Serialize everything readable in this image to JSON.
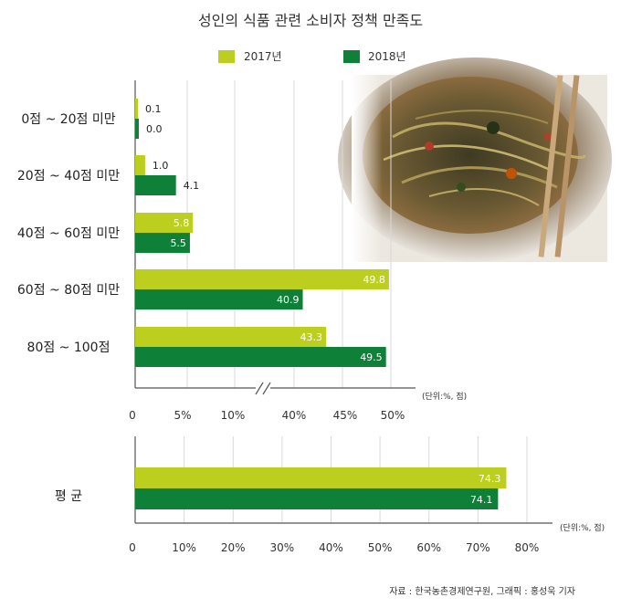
{
  "chart_data": [
    {
      "type": "bar",
      "orientation": "horizontal",
      "title": "성인의 식품 관련 소비자 정책 만족도",
      "unit_note": "(단위:%, 점)",
      "categories": [
        "0점 ~ 20점 미만",
        "20점 ~ 40점 미만",
        "40점 ~ 60점 미만",
        "60점 ~ 80점 미만",
        "80점 ~ 100점"
      ],
      "series": [
        {
          "name": "2017년",
          "values": [
            0.1,
            1.0,
            5.8,
            49.8,
            43.3
          ],
          "labels": [
            "0.1",
            "1.0",
            "5.8",
            "49.8",
            "43.3"
          ]
        },
        {
          "name": "2018년",
          "values": [
            0.0,
            4.1,
            5.5,
            40.9,
            49.5
          ],
          "labels": [
            "0.0",
            "4.1",
            "5.5",
            "40.9",
            "49.5"
          ]
        }
      ],
      "x_tick_labels": [
        "0",
        "5%",
        "10%",
        "40%",
        "45%",
        "50%"
      ],
      "axis_break": "between 10% and 40%",
      "grid": true,
      "legend_position": "top"
    },
    {
      "type": "bar",
      "orientation": "horizontal",
      "unit_note": "(단위:%, 점)",
      "categories": [
        "평  균"
      ],
      "series": [
        {
          "name": "2017년",
          "values": [
            74.3
          ],
          "labels": [
            "74.3"
          ]
        },
        {
          "name": "2018년",
          "values": [
            74.1
          ],
          "labels": [
            "74.1"
          ]
        }
      ],
      "x_tick_labels": [
        "0",
        "10%",
        "20%",
        "30%",
        "40%",
        "50%",
        "60%",
        "70%",
        "80%"
      ],
      "xlim": [
        0,
        80
      ],
      "grid": true
    }
  ],
  "colors": {
    "series_2017": "#bdcf1e",
    "series_2018": "#0f8038",
    "grid": "#d9d9d9",
    "axis": "#555555"
  },
  "source": "자료 : 한국농촌경제연구원, 그래픽 : 홍성욱 기자"
}
